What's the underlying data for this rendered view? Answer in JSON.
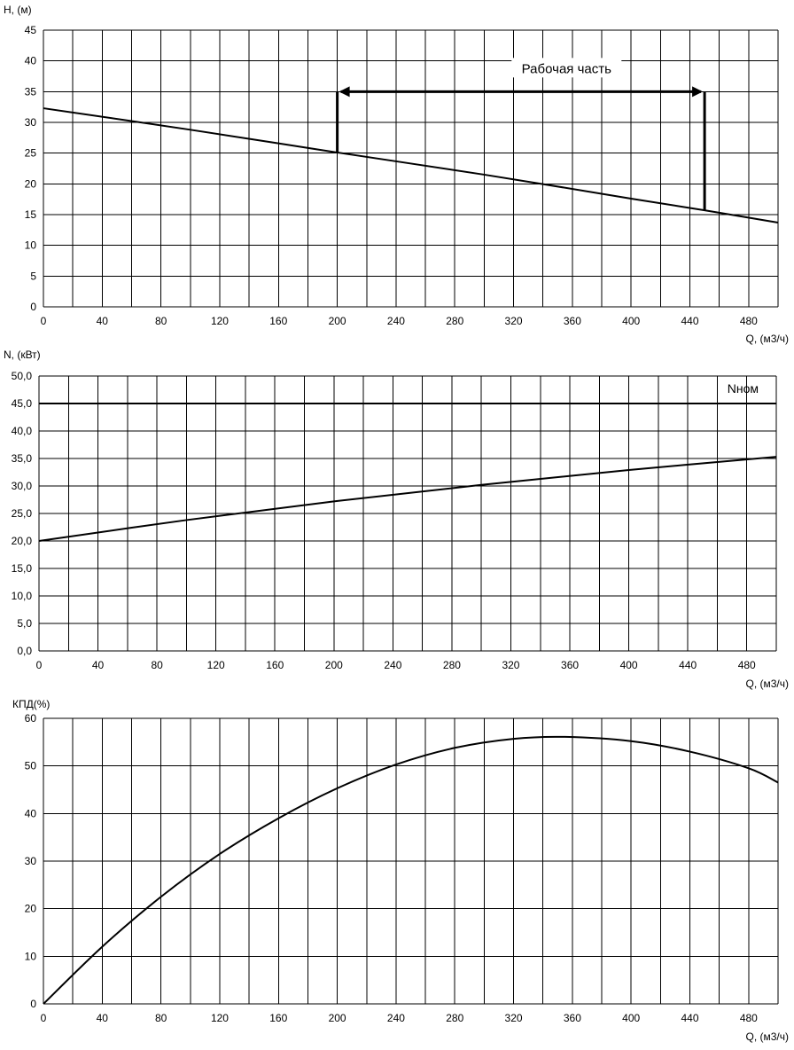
{
  "chart_data": [
    {
      "type": "line",
      "ylabel": "H, (м)",
      "xlabel": "Q, (м3/ч)",
      "xlim": [
        0,
        500
      ],
      "ylim": [
        0,
        45
      ],
      "x_ticks": [
        "0",
        "40",
        "80",
        "120",
        "160",
        "200",
        "240",
        "280",
        "320",
        "360",
        "400",
        "440",
        "480"
      ],
      "y_ticks": [
        "0",
        "5",
        "10",
        "15",
        "20",
        "25",
        "30",
        "35",
        "40",
        "45"
      ],
      "grid": true,
      "series": [
        {
          "x": [
            0,
            100,
            200,
            300,
            400,
            450,
            500
          ],
          "values": [
            32.3,
            28.8,
            25.1,
            21.5,
            17.6,
            15.7,
            13.7
          ]
        }
      ],
      "annotations": [
        {
          "text": "Рабочая часть",
          "x_start": 200,
          "x_end": 450,
          "y_level": 35,
          "y_start": 25.1,
          "y_end": 15.7
        }
      ]
    },
    {
      "type": "line",
      "ylabel": "N, (кВт)",
      "xlabel": "Q, (м3/ч)",
      "xlim": [
        0,
        500
      ],
      "ylim": [
        0,
        50
      ],
      "x_ticks": [
        "0",
        "40",
        "80",
        "120",
        "160",
        "200",
        "240",
        "280",
        "320",
        "360",
        "400",
        "440",
        "480"
      ],
      "y_ticks": [
        "0,0",
        "5,0",
        "10,0",
        "15,0",
        "20,0",
        "25,0",
        "30,0",
        "35,0",
        "40,0",
        "45,0",
        "50,0"
      ],
      "grid": true,
      "series": [
        {
          "x": [
            0,
            100,
            200,
            300,
            400,
            500
          ],
          "values": [
            20.0,
            23.8,
            27.2,
            30.2,
            32.9,
            35.3
          ]
        },
        {
          "name": "Nном",
          "x": [
            0,
            500
          ],
          "values": [
            45.0,
            45.0
          ]
        }
      ]
    },
    {
      "type": "line",
      "ylabel": "КПД(%)",
      "xlabel": "Q, (м3/ч)",
      "xlim": [
        0,
        500
      ],
      "ylim": [
        0,
        60
      ],
      "x_ticks": [
        "0",
        "40",
        "80",
        "120",
        "160",
        "200",
        "240",
        "280",
        "320",
        "360",
        "400",
        "440",
        "480"
      ],
      "y_ticks": [
        "0",
        "10",
        "20",
        "30",
        "40",
        "50",
        "60"
      ],
      "grid": true,
      "series": [
        {
          "x": [
            0,
            40,
            80,
            120,
            160,
            200,
            240,
            280,
            320,
            355,
            400,
            440,
            480,
            500
          ],
          "values": [
            0,
            12,
            22.5,
            31.5,
            39,
            45.3,
            50.3,
            53.8,
            55.7,
            56.1,
            55.2,
            53.0,
            49.5,
            46.5
          ]
        }
      ]
    }
  ]
}
